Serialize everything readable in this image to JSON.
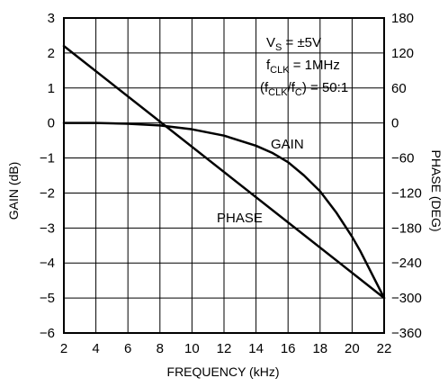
{
  "chart_data": {
    "type": "line",
    "xlabel": "FREQUENCY (kHz)",
    "ylabel": "GAIN (dB)",
    "y2label": "PHASE (DEG)",
    "xlim": [
      2,
      22
    ],
    "ylim": [
      -6,
      3
    ],
    "y2lim": [
      -360,
      180
    ],
    "x_ticks": [
      2,
      4,
      6,
      8,
      10,
      12,
      14,
      16,
      18,
      20,
      22
    ],
    "y_ticks": [
      3,
      2,
      1,
      0,
      -1,
      -2,
      -3,
      -4,
      -5,
      -6
    ],
    "y2_ticks": [
      180,
      120,
      60,
      0,
      -60,
      -120,
      -180,
      -240,
      -300,
      -360
    ],
    "grid": true,
    "series": [
      {
        "name": "GAIN",
        "axis": "left",
        "x": [
          2,
          4,
          6,
          8,
          10,
          12,
          14,
          15,
          16,
          17,
          18,
          19,
          20,
          20.5,
          21,
          21.5,
          22
        ],
        "y": [
          0,
          0,
          -0.02,
          -0.07,
          -0.18,
          -0.36,
          -0.65,
          -0.85,
          -1.12,
          -1.5,
          -1.95,
          -2.55,
          -3.25,
          -3.65,
          -4.1,
          -4.55,
          -5.0
        ]
      },
      {
        "name": "PHASE",
        "axis": "right",
        "x": [
          2,
          22
        ],
        "y": [
          132,
          -300
        ]
      }
    ],
    "annotations": {
      "conditions": {
        "vs_label": "V",
        "vs_sub": "S",
        "vs_value": " = ±5V",
        "fclk_label": "f",
        "fclk_sub": "CLK",
        "fclk_value": " = 1MHz",
        "ratio_open": "(f",
        "ratio_sub1": "CLK",
        "ratio_mid": "/f",
        "ratio_sub2": "C",
        "ratio_value": ") = 50:1"
      },
      "gain_label": "GAIN",
      "phase_label": "PHASE"
    }
  }
}
